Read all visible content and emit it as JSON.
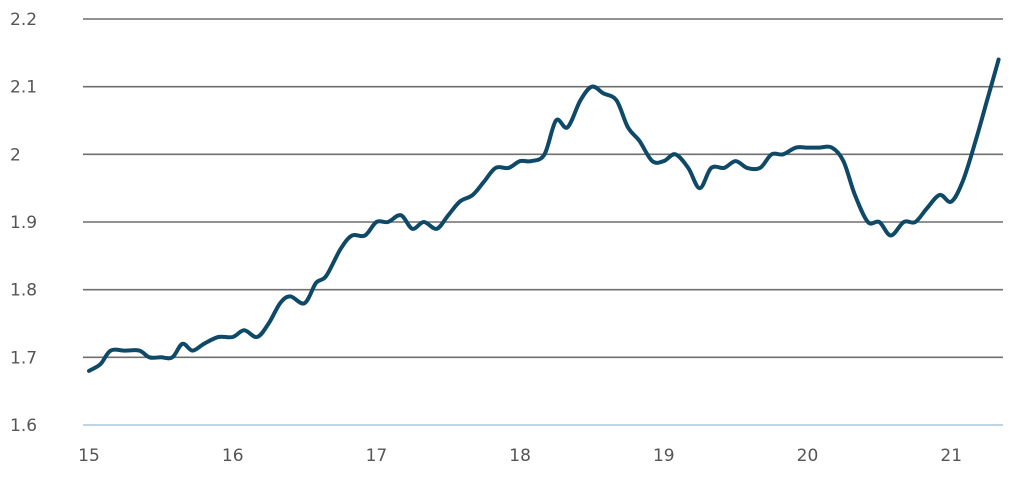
{
  "chart_data": {
    "type": "line",
    "title": "",
    "xlabel": "",
    "ylabel": "",
    "xlim": [
      15,
      21.4
    ],
    "ylim": [
      1.6,
      2.2
    ],
    "x_ticks": [
      15,
      16,
      17,
      18,
      19,
      20,
      21
    ],
    "x_tick_labels": [
      "15",
      "16",
      "17",
      "18",
      "19",
      "20",
      "21"
    ],
    "y_ticks": [
      1.6,
      1.7,
      1.8,
      1.9,
      2.0,
      2.1,
      2.2
    ],
    "y_tick_labels": [
      "1.6",
      "1.7",
      "1.8",
      "1.9",
      "2",
      "2.1",
      "2.2"
    ],
    "grid": true,
    "legend": "none",
    "colors": {
      "series": "#0e4a68",
      "grid": "#6f6f6f",
      "axis": "#a9c8d8"
    },
    "series": [
      {
        "x": [
          15.0,
          15.08,
          15.15,
          15.25,
          15.35,
          15.42,
          15.5,
          15.58,
          15.65,
          15.72,
          15.8,
          15.9,
          16.0,
          16.08,
          16.17,
          16.25,
          16.33,
          16.4,
          16.5,
          16.58,
          16.65,
          16.75,
          16.83,
          16.92,
          17.0,
          17.08,
          17.17,
          17.25,
          17.33,
          17.42,
          17.5,
          17.58,
          17.67,
          17.75,
          17.83,
          17.92,
          18.0,
          18.08,
          18.17,
          18.25,
          18.33,
          18.42,
          18.5,
          18.58,
          18.67,
          18.75,
          18.83,
          18.92,
          19.0,
          19.08,
          19.17,
          19.25,
          19.33,
          19.42,
          19.5,
          19.58,
          19.67,
          19.75,
          19.83,
          19.92,
          20.0,
          20.08,
          20.17,
          20.25,
          20.33,
          20.42,
          20.5,
          20.58,
          20.67,
          20.75,
          20.83,
          20.92,
          21.0,
          21.08,
          21.17,
          21.25,
          21.33
        ],
        "y": [
          1.68,
          1.69,
          1.71,
          1.71,
          1.71,
          1.7,
          1.7,
          1.7,
          1.72,
          1.71,
          1.72,
          1.73,
          1.73,
          1.74,
          1.73,
          1.75,
          1.78,
          1.79,
          1.78,
          1.81,
          1.82,
          1.86,
          1.88,
          1.88,
          1.9,
          1.9,
          1.91,
          1.89,
          1.9,
          1.89,
          1.91,
          1.93,
          1.94,
          1.96,
          1.98,
          1.98,
          1.99,
          1.99,
          2.0,
          2.05,
          2.04,
          2.08,
          2.1,
          2.09,
          2.08,
          2.04,
          2.02,
          1.99,
          1.99,
          2.0,
          1.98,
          1.95,
          1.98,
          1.98,
          1.99,
          1.98,
          1.98,
          2.0,
          2.0,
          2.01,
          2.01,
          2.01,
          2.01,
          1.99,
          1.94,
          1.9,
          1.9,
          1.88,
          1.9,
          1.9,
          1.92,
          1.94,
          1.93,
          1.96,
          2.02,
          2.08,
          2.14
        ]
      }
    ]
  }
}
